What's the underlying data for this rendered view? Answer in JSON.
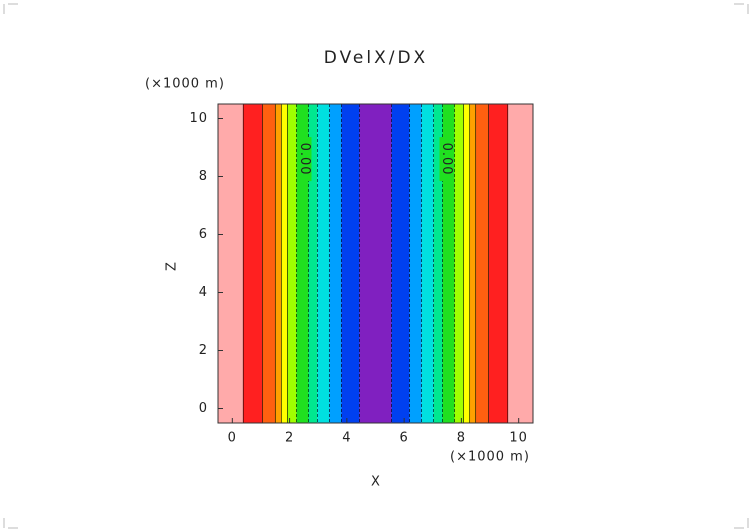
{
  "chart_data": {
    "type": "contour",
    "title": "DVelX/DX",
    "x_label": "X",
    "y_label": "Z",
    "x_unit": "(×1000 m)",
    "y_unit": "(×1000 m)",
    "xlim": [
      -0.5,
      10.5
    ],
    "ylim": [
      -0.5,
      10.5
    ],
    "xticks": [
      0,
      2,
      4,
      6,
      8,
      10
    ],
    "yticks": [
      0,
      2,
      4,
      6,
      8,
      10
    ],
    "bands": {
      "edges": [
        -0.5,
        0.38,
        1.05,
        1.5,
        1.71,
        1.92,
        2.24,
        2.66,
        2.97,
        3.39,
        3.81,
        4.44,
        5.56,
        6.19,
        6.61,
        7.03,
        7.34,
        7.76,
        8.08,
        8.29,
        8.5,
        8.95,
        9.62,
        10.5
      ],
      "colors": [
        "#ffaaaa",
        "#ff2020",
        "#ff6010",
        "#ffa000",
        "#ffff00",
        "#a0ff00",
        "#20e020",
        "#00e890",
        "#00e0e0",
        "#00a0ff",
        "#0040f0",
        "#8020c0",
        "#0040f0",
        "#00a0ff",
        "#00e0e0",
        "#00e890",
        "#20e020",
        "#a0ff00",
        "#ffff00",
        "#ffa000",
        "#ff6010",
        "#ff2020",
        "#ffaaaa"
      ]
    },
    "contour_labels": [
      "0.00",
      "0.00"
    ]
  }
}
